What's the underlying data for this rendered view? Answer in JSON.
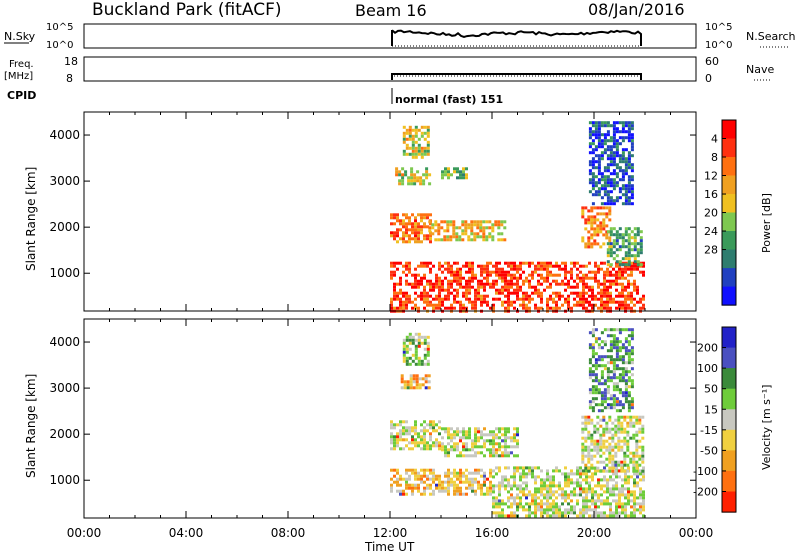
{
  "header": {
    "station": "Buckland Park (fitACF)",
    "beam": "Beam 16",
    "date": "08/Jan/2016"
  },
  "noise_panel": {
    "left_label": "N.Sky",
    "right_label": "N.Search",
    "ticks": [
      "10^5",
      "10^0"
    ]
  },
  "freq_panel": {
    "left_label_1": "Freq.",
    "left_label_2": "[MHz]",
    "right_label": "Nave",
    "left_ticks": [
      "18",
      "8"
    ],
    "right_ticks": [
      "60",
      "0"
    ]
  },
  "cpid": {
    "label": "CPID",
    "mode": "normal (fast) 151"
  },
  "colors": {
    "power": [
      "#1010ff",
      "#2040c0",
      "#2e7d6f",
      "#3a9a5a",
      "#7ec850",
      "#f0c020",
      "#f0a020",
      "#ff7010",
      "#ff3010",
      "#ff0000"
    ],
    "velocity": [
      "#2222c8",
      "#4a50c0",
      "#3a8a3a",
      "#6ecc3a",
      "#c8c8c0",
      "#f0d040",
      "#f0a020",
      "#ff7010",
      "#ff2000"
    ]
  },
  "chart_data": [
    {
      "type": "heatmap",
      "title": "Power",
      "xlabel": "Time UT",
      "ylabel": "Slant Range [km]",
      "x_ticks": [
        "00:00",
        "04:00",
        "08:00",
        "12:00",
        "16:00",
        "20:00",
        "00:00"
      ],
      "xlim_hours": [
        0,
        24
      ],
      "ylim": [
        180,
        4500
      ],
      "y_ticks": [
        1000,
        2000,
        3000,
        4000
      ],
      "colorbar": {
        "label": "Power [dB]",
        "ticks": [
          "4",
          "8",
          "12",
          "16",
          "20",
          "24",
          "28"
        ],
        "range": [
          0,
          30
        ]
      },
      "regions": [
        {
          "t0": 12.0,
          "t1": 22.0,
          "r0": 200,
          "r1": 1250,
          "level": 0.85
        },
        {
          "t0": 12.0,
          "t1": 13.6,
          "r0": 1700,
          "r1": 2300,
          "level": 0.75
        },
        {
          "t0": 13.5,
          "t1": 16.5,
          "r0": 1750,
          "r1": 2150,
          "level": 0.6
        },
        {
          "t0": 12.2,
          "t1": 13.5,
          "r0": 2950,
          "r1": 3300,
          "level": 0.55
        },
        {
          "t0": 14.0,
          "t1": 15.0,
          "r0": 3050,
          "r1": 3300,
          "level": 0.4
        },
        {
          "t0": 12.5,
          "t1": 13.5,
          "r0": 3500,
          "r1": 4200,
          "level": 0.55
        },
        {
          "t0": 19.5,
          "t1": 20.6,
          "r0": 1550,
          "r1": 2450,
          "level": 0.7
        },
        {
          "t0": 20.5,
          "t1": 21.8,
          "r0": 1200,
          "r1": 2000,
          "level": 0.35
        },
        {
          "t0": 19.8,
          "t1": 21.5,
          "r0": 2500,
          "r1": 4300,
          "level": 0.15
        }
      ]
    },
    {
      "type": "heatmap",
      "title": "Velocity",
      "xlabel": "Time UT",
      "ylabel": "Slant Range [km]",
      "x_ticks": [
        "00:00",
        "04:00",
        "08:00",
        "12:00",
        "16:00",
        "20:00",
        "00:00"
      ],
      "xlim_hours": [
        0,
        24
      ],
      "ylim": [
        180,
        4500
      ],
      "y_ticks": [
        1000,
        2000,
        3000,
        4000
      ],
      "colorbar": {
        "label": "Velocity [m s⁻¹]",
        "ticks": [
          "200",
          "100",
          "50",
          "15",
          "-15",
          "-50",
          "-100",
          "-200"
        ],
        "range": [
          -250,
          250
        ]
      },
      "regions": [
        {
          "t0": 12.0,
          "t1": 16.0,
          "r0": 700,
          "r1": 1250,
          "level": 0.65
        },
        {
          "t0": 16.0,
          "t1": 22.0,
          "r0": 200,
          "r1": 1300,
          "level": 0.5
        },
        {
          "t0": 12.0,
          "t1": 14.0,
          "r0": 1700,
          "r1": 2300,
          "level": 0.5
        },
        {
          "t0": 14.0,
          "t1": 17.0,
          "r0": 1500,
          "r1": 2150,
          "level": 0.5
        },
        {
          "t0": 12.3,
          "t1": 13.5,
          "r0": 3000,
          "r1": 3300,
          "level": 0.7
        },
        {
          "t0": 12.5,
          "t1": 13.5,
          "r0": 3500,
          "r1": 4200,
          "level": 0.45
        },
        {
          "t0": 19.5,
          "t1": 21.9,
          "r0": 1200,
          "r1": 2400,
          "level": 0.5
        },
        {
          "t0": 19.8,
          "t1": 21.5,
          "r0": 2500,
          "r1": 4300,
          "level": 0.3
        }
      ]
    }
  ]
}
